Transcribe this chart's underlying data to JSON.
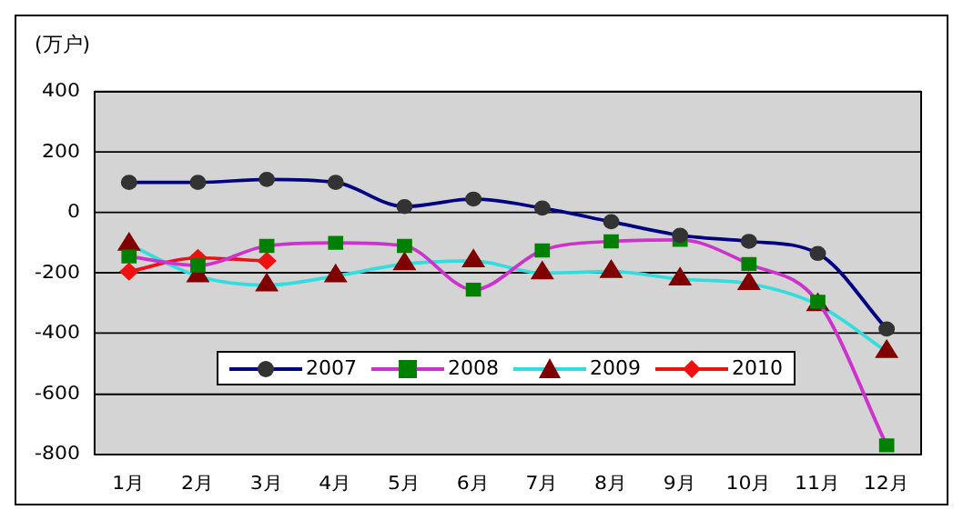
{
  "chart_data": {
    "type": "line",
    "ylabel": "(万户)",
    "categories": [
      "1月",
      "2月",
      "3月",
      "4月",
      "5月",
      "6月",
      "7月",
      "8月",
      "9月",
      "10月",
      "11月",
      "12月"
    ],
    "series": [
      {
        "name": "2007",
        "color": "#000080",
        "marker": "circle",
        "values": [
          100,
          100,
          110,
          100,
          20,
          45,
          15,
          -30,
          -75,
          -95,
          -135,
          -385
        ]
      },
      {
        "name": "2008",
        "color": "#cc33cc",
        "marker": "square",
        "values": [
          -145,
          -175,
          -110,
          -100,
          -110,
          -255,
          -125,
          -95,
          -90,
          -170,
          -295,
          -770
        ]
      },
      {
        "name": "2009",
        "color": "#33dddd",
        "marker": "triangle",
        "values": [
          -105,
          -210,
          -240,
          -210,
          -170,
          -160,
          -200,
          -195,
          -220,
          -235,
          -305,
          -460
        ]
      },
      {
        "name": "2010",
        "color": "#ee1111",
        "marker": "diamond",
        "values": [
          -195,
          -150,
          -160,
          null,
          null,
          null,
          null,
          null,
          null,
          null,
          null,
          null
        ]
      }
    ],
    "ylim": [
      -800,
      400
    ],
    "yticks": [
      -800,
      -600,
      -400,
      -200,
      0,
      200,
      400
    ],
    "grid": "y",
    "legend": "bottom left"
  }
}
